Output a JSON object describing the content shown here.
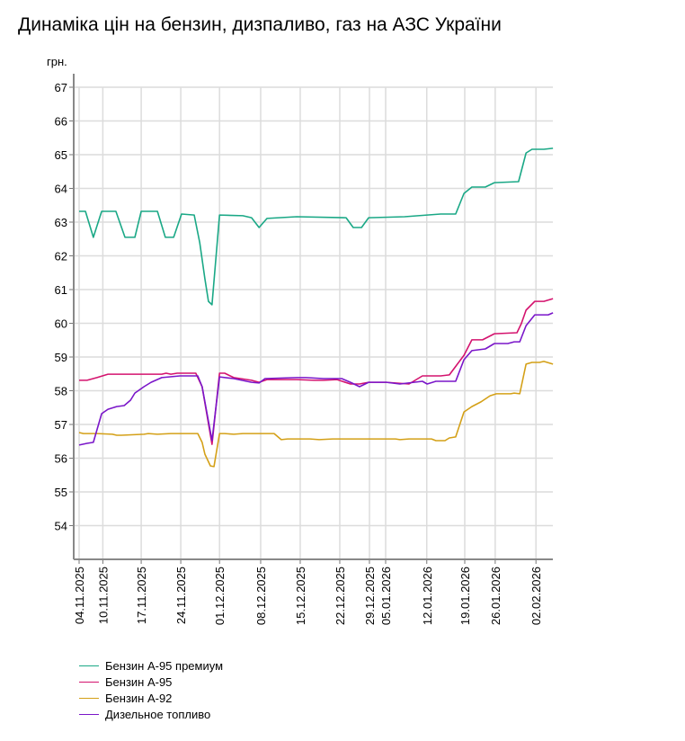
{
  "chart_data": {
    "type": "line",
    "title": "Динаміка цін на бензин, дизпаливо, газ на АЗС України",
    "ylabel": "грн.",
    "xlabel": "",
    "ylim": [
      53,
      67
    ],
    "yticks": [
      54,
      55,
      56,
      57,
      58,
      59,
      60,
      61,
      62,
      63,
      64,
      65,
      66,
      67
    ],
    "xlim": [
      0,
      120
    ],
    "x_unit": "trading-day index",
    "xticks": [
      {
        "i": 0,
        "label": "04.11.2025"
      },
      {
        "i": 6,
        "label": "10.11.2025"
      },
      {
        "i": 15.7,
        "label": "17.11.2025"
      },
      {
        "i": 25.7,
        "label": "24.11.2025"
      },
      {
        "i": 35.5,
        "label": "01.12.2025"
      },
      {
        "i": 45.9,
        "label": "08.12.2025"
      },
      {
        "i": 55.9,
        "label": "15.12.2025"
      },
      {
        "i": 65.9,
        "label": "22.12.2025"
      },
      {
        "i": 73.4,
        "label": "29.12.2025"
      },
      {
        "i": 77.5,
        "label": "05.01.2026"
      },
      {
        "i": 87.9,
        "label": "12.01.2026"
      },
      {
        "i": 97.5,
        "label": "19.01.2026"
      },
      {
        "i": 105.2,
        "label": "26.01.2026"
      },
      {
        "i": 115.5,
        "label": "02.02.2026"
      }
    ],
    "grid": true,
    "legend_placement": "bottom-left",
    "series": [
      {
        "name": "Бензин А-95 премиум",
        "color": "#1aa886",
        "points": [
          [
            0,
            63.32
          ],
          [
            1.6,
            63.32
          ],
          [
            3.6,
            62.55
          ],
          [
            5.7,
            63.32
          ],
          [
            9.3,
            63.32
          ],
          [
            11.6,
            62.55
          ],
          [
            14.1,
            62.55
          ],
          [
            15.7,
            63.32
          ],
          [
            19.8,
            63.32
          ],
          [
            21.8,
            62.55
          ],
          [
            23.9,
            62.55
          ],
          [
            25.9,
            63.24
          ],
          [
            29.1,
            63.21
          ],
          [
            30.5,
            62.39
          ],
          [
            31.8,
            61.32
          ],
          [
            32.7,
            60.65
          ],
          [
            33.6,
            60.55
          ],
          [
            35.5,
            63.21
          ],
          [
            41.4,
            63.19
          ],
          [
            43.6,
            63.13
          ],
          [
            45.5,
            62.84
          ],
          [
            47.5,
            63.11
          ],
          [
            55,
            63.16
          ],
          [
            67.5,
            63.13
          ],
          [
            69.3,
            62.84
          ],
          [
            71.4,
            62.84
          ],
          [
            73.2,
            63.13
          ],
          [
            82.3,
            63.16
          ],
          [
            91.4,
            63.24
          ],
          [
            95.2,
            63.24
          ],
          [
            97.3,
            63.85
          ],
          [
            99.3,
            64.04
          ],
          [
            102.7,
            64.04
          ],
          [
            105,
            64.17
          ],
          [
            111.1,
            64.2
          ],
          [
            113,
            65.05
          ],
          [
            114.5,
            65.16
          ],
          [
            117.5,
            65.16
          ],
          [
            119.8,
            65.19
          ]
        ]
      },
      {
        "name": "Бензин А-95",
        "color": "#d4136e",
        "points": [
          [
            0,
            58.31
          ],
          [
            2,
            58.31
          ],
          [
            4.5,
            58.39
          ],
          [
            7.3,
            58.49
          ],
          [
            20.9,
            58.49
          ],
          [
            22,
            58.52
          ],
          [
            23.2,
            58.49
          ],
          [
            24.8,
            58.52
          ],
          [
            29.5,
            58.52
          ],
          [
            31.1,
            58.12
          ],
          [
            33.6,
            56.41
          ],
          [
            35.5,
            58.52
          ],
          [
            36.8,
            58.52
          ],
          [
            39.1,
            58.39
          ],
          [
            43.6,
            58.31
          ],
          [
            45.5,
            58.25
          ],
          [
            47.5,
            58.33
          ],
          [
            55,
            58.33
          ],
          [
            59.5,
            58.31
          ],
          [
            61.8,
            58.31
          ],
          [
            65.2,
            58.33
          ],
          [
            68.6,
            58.2
          ],
          [
            70.9,
            58.2
          ],
          [
            73.2,
            58.25
          ],
          [
            77.7,
            58.25
          ],
          [
            83.4,
            58.2
          ],
          [
            86.8,
            58.44
          ],
          [
            91.4,
            58.44
          ],
          [
            93.6,
            58.47
          ],
          [
            97.3,
            59.05
          ],
          [
            99.3,
            59.51
          ],
          [
            102,
            59.51
          ],
          [
            105,
            59.69
          ],
          [
            110.7,
            59.72
          ],
          [
            111.8,
            59.99
          ],
          [
            113,
            60.39
          ],
          [
            115.2,
            60.65
          ],
          [
            117.5,
            60.65
          ],
          [
            119.8,
            60.73
          ]
        ]
      },
      {
        "name": "Бензин А-92",
        "color": "#d4a017",
        "points": [
          [
            0,
            56.76
          ],
          [
            1.1,
            56.73
          ],
          [
            3.4,
            56.73
          ],
          [
            4.5,
            56.73
          ],
          [
            8.4,
            56.71
          ],
          [
            9.5,
            56.68
          ],
          [
            10.7,
            56.68
          ],
          [
            16.4,
            56.71
          ],
          [
            17.5,
            56.73
          ],
          [
            19.8,
            56.71
          ],
          [
            23.2,
            56.73
          ],
          [
            30,
            56.73
          ],
          [
            31.1,
            56.47
          ],
          [
            31.8,
            56.12
          ],
          [
            33.2,
            55.77
          ],
          [
            34.1,
            55.75
          ],
          [
            35.5,
            56.73
          ],
          [
            36.8,
            56.73
          ],
          [
            39.1,
            56.71
          ],
          [
            41.4,
            56.73
          ],
          [
            49.3,
            56.73
          ],
          [
            51.1,
            56.55
          ],
          [
            52.7,
            56.57
          ],
          [
            58.4,
            56.57
          ],
          [
            60.7,
            56.55
          ],
          [
            64.1,
            56.57
          ],
          [
            80,
            56.57
          ],
          [
            81.1,
            56.55
          ],
          [
            83.4,
            56.57
          ],
          [
            89.1,
            56.57
          ],
          [
            90.2,
            56.52
          ],
          [
            92.5,
            56.52
          ],
          [
            93.6,
            56.6
          ],
          [
            95.2,
            56.63
          ],
          [
            97.3,
            57.37
          ],
          [
            99.3,
            57.53
          ],
          [
            101.6,
            57.67
          ],
          [
            103.9,
            57.85
          ],
          [
            105.5,
            57.91
          ],
          [
            109.1,
            57.91
          ],
          [
            110,
            57.93
          ],
          [
            111.4,
            57.91
          ],
          [
            113,
            58.79
          ],
          [
            114.5,
            58.84
          ],
          [
            116.4,
            58.84
          ],
          [
            117.5,
            58.87
          ],
          [
            119.8,
            58.79
          ]
        ]
      },
      {
        "name": "Дизельное топливо",
        "color": "#7a16c9",
        "points": [
          [
            0,
            56.39
          ],
          [
            2,
            56.44
          ],
          [
            3.6,
            56.47
          ],
          [
            5.7,
            57.32
          ],
          [
            7.3,
            57.45
          ],
          [
            9.5,
            57.53
          ],
          [
            11.4,
            57.56
          ],
          [
            13,
            57.72
          ],
          [
            14.1,
            57.93
          ],
          [
            16.4,
            58.12
          ],
          [
            18.2,
            58.25
          ],
          [
            20.9,
            58.39
          ],
          [
            25.5,
            58.44
          ],
          [
            30,
            58.44
          ],
          [
            31.1,
            58.12
          ],
          [
            33.6,
            56.52
          ],
          [
            35.5,
            58.41
          ],
          [
            39.1,
            58.36
          ],
          [
            43.6,
            58.25
          ],
          [
            45.5,
            58.23
          ],
          [
            47,
            58.36
          ],
          [
            55,
            58.39
          ],
          [
            57.3,
            58.39
          ],
          [
            61.8,
            58.36
          ],
          [
            66.4,
            58.36
          ],
          [
            68.6,
            58.25
          ],
          [
            70.9,
            58.12
          ],
          [
            73.2,
            58.25
          ],
          [
            77.7,
            58.25
          ],
          [
            81.1,
            58.2
          ],
          [
            86.8,
            58.28
          ],
          [
            88,
            58.2
          ],
          [
            90.2,
            58.28
          ],
          [
            95.2,
            58.28
          ],
          [
            97.3,
            58.92
          ],
          [
            99.3,
            59.19
          ],
          [
            102.7,
            59.24
          ],
          [
            105,
            59.4
          ],
          [
            108.4,
            59.4
          ],
          [
            110,
            59.45
          ],
          [
            111.4,
            59.45
          ],
          [
            113,
            59.93
          ],
          [
            115.2,
            60.25
          ],
          [
            118.6,
            60.25
          ],
          [
            119.8,
            60.31
          ]
        ]
      }
    ]
  }
}
